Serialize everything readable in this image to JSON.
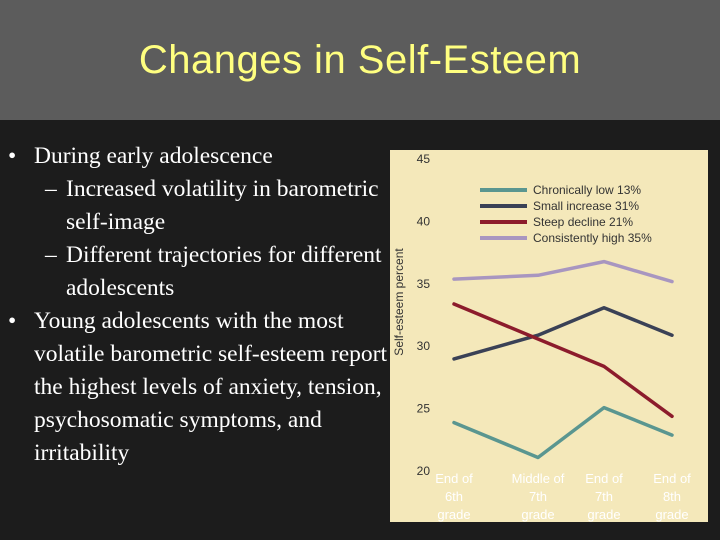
{
  "slide": {
    "title": "Changes in Self-Esteem",
    "bullets": [
      {
        "text": "During early adolescence",
        "marker": "•"
      },
      {
        "text": "Increased volatility in barometric self-image",
        "marker": "–"
      },
      {
        "text": "Different trajectories for different adolescents",
        "marker": "–"
      },
      {
        "text": "Young adolescents with the most volatile barometric self-esteem report the highest levels of anxiety, tension, psychosomatic symptoms, and irritability",
        "marker": "•"
      }
    ]
  },
  "colors": {
    "chronically_low": "#5a9690",
    "small_increase": "#3a4156",
    "steep_decline": "#8c1c2c",
    "consistently_high": "#a896c0",
    "chart_bg": "#f4e8ba",
    "axis_text": "#333333"
  },
  "chart_data": {
    "type": "line",
    "ylabel": "Self-esteem percent",
    "xlabel": "",
    "ylim": [
      20,
      45
    ],
    "yticks": [
      20,
      25,
      30,
      35,
      40,
      45
    ],
    "categories": [
      [
        "End of",
        "6th",
        "grade"
      ],
      [
        "Middle of",
        "7th",
        "grade"
      ],
      [
        "End of",
        "7th",
        "grade"
      ],
      [
        "End of",
        "8th",
        "grade"
      ]
    ],
    "legend_position": "top-right",
    "series": [
      {
        "name": "Chronically low",
        "share": "13%",
        "color_key": "chronically_low",
        "values": [
          23.8,
          21.0,
          25.0,
          22.8
        ]
      },
      {
        "name": "Small increase",
        "share": "31%",
        "color_key": "small_increase",
        "values": [
          28.9,
          30.8,
          33.0,
          30.8
        ]
      },
      {
        "name": "Steep decline",
        "share": "21%",
        "color_key": "steep_decline",
        "values": [
          33.3,
          30.5,
          28.3,
          24.3
        ]
      },
      {
        "name": "Consistently high",
        "share": "35%",
        "color_key": "consistently_high",
        "values": [
          35.3,
          35.6,
          36.7,
          35.1
        ]
      }
    ]
  }
}
